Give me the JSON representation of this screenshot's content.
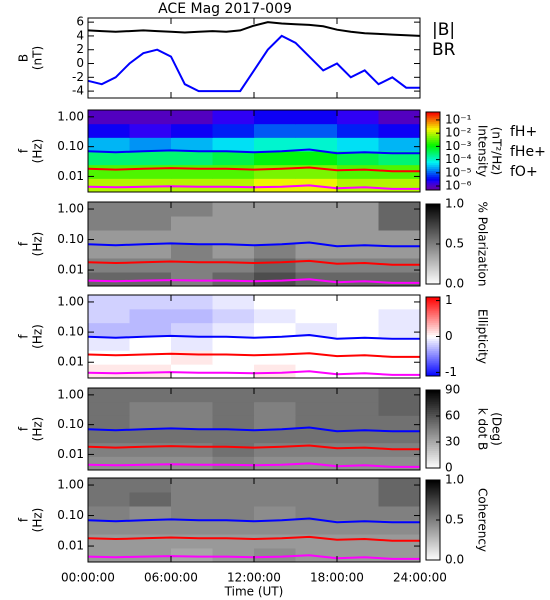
{
  "chart_data": [
    {
      "type": "line",
      "title": "ACE Mag 2017-009",
      "ylabel": [
        "B",
        "(nT)"
      ],
      "x": [
        0,
        1,
        2,
        3,
        4,
        5,
        6,
        7,
        8,
        9,
        10,
        11,
        12,
        13,
        14,
        15,
        16,
        17,
        18,
        19,
        20,
        21,
        22,
        23,
        24
      ],
      "xlim": [
        0,
        24
      ],
      "ylim": [
        -5,
        6.6
      ],
      "yticks": [
        -4,
        -2,
        0,
        2,
        4,
        6
      ],
      "series": [
        {
          "name": "|B|",
          "color": "#000000",
          "values": [
            4.8,
            4.7,
            4.6,
            4.7,
            4.8,
            4.7,
            4.6,
            4.5,
            4.6,
            4.7,
            4.6,
            4.8,
            5.5,
            6.0,
            5.8,
            5.7,
            5.6,
            5.4,
            4.9,
            4.6,
            4.4,
            4.3,
            4.2,
            4.1,
            4.0
          ]
        },
        {
          "name": "BR",
          "color": "#0000ff",
          "values": [
            -2.5,
            -3,
            -2,
            0,
            1.5,
            2,
            1,
            -3,
            -4,
            -4,
            -4,
            -4,
            -1,
            2,
            4,
            3,
            1,
            -1,
            0,
            -2,
            -1,
            -3,
            -2,
            -3.5,
            -3.5
          ]
        }
      ]
    },
    {
      "type": "heatmap",
      "ylabel": [
        "f",
        "(Hz)"
      ],
      "ylog": true,
      "ylim": [
        0.003,
        1.7
      ],
      "yticks": [
        {
          "value": 1,
          "label": "1.00"
        },
        {
          "value": 0.1,
          "label": "0.10"
        },
        {
          "value": 0.01,
          "label": "0.01"
        }
      ],
      "x": [
        0,
        2,
        4,
        6,
        8,
        10,
        12,
        14,
        16,
        18,
        20,
        22,
        24
      ],
      "xlim": [
        0,
        24
      ],
      "colormap": "rainbow",
      "zlog": true,
      "zlim": [
        5e-07,
        0.4
      ],
      "zlabel": [
        "Intensity",
        "(nT²/Hz)"
      ],
      "zticks": [
        {
          "value": 0.1,
          "label": "10⁻¹"
        },
        {
          "value": 0.01,
          "label": "10⁻²"
        },
        {
          "value": 0.001,
          "label": "10⁻³"
        },
        {
          "value": 0.0001,
          "label": "10⁻⁴"
        },
        {
          "value": 1e-05,
          "label": "10⁻⁵"
        },
        {
          "value": 1e-06,
          "label": "10⁻⁶"
        }
      ],
      "z": [
        [
          0.01,
          0.01,
          0.01,
          0.01,
          0.02,
          0.02,
          0.01,
          0.01
        ],
        [
          0.003,
          0.003,
          0.003,
          0.003,
          0.005,
          0.005,
          0.003,
          0.003
        ],
        [
          0.0003,
          0.0003,
          0.0003,
          0.0005,
          0.001,
          0.001,
          0.0005,
          0.0003
        ],
        [
          3e-05,
          2e-05,
          3e-05,
          5e-05,
          0.0001,
          0.0001,
          5e-05,
          3e-05
        ],
        [
          3e-06,
          2e-06,
          3e-06,
          5e-06,
          1e-05,
          1e-05,
          5e-06,
          3e-06
        ],
        [
          1e-06,
          1e-06,
          1e-06,
          2e-06,
          3e-06,
          3e-06,
          2e-06,
          1e-06
        ]
      ],
      "series": [
        {
          "name": "fH+",
          "color": "#0000ff",
          "values": [
            0.07,
            0.065,
            0.07,
            0.075,
            0.07,
            0.07,
            0.065,
            0.07,
            0.08,
            0.06,
            0.065,
            0.06,
            0.06
          ]
        },
        {
          "name": "fHe+",
          "color": "#ff0000",
          "values": [
            0.018,
            0.017,
            0.018,
            0.019,
            0.018,
            0.018,
            0.017,
            0.018,
            0.02,
            0.016,
            0.017,
            0.015,
            0.015
          ]
        },
        {
          "name": "fO+",
          "color": "#ff00ff",
          "values": [
            0.0045,
            0.0043,
            0.0045,
            0.0047,
            0.0045,
            0.0045,
            0.0043,
            0.0045,
            0.005,
            0.004,
            0.0043,
            0.0038,
            0.0038
          ]
        }
      ]
    },
    {
      "type": "heatmap",
      "ylabel": [
        "f",
        "(Hz)"
      ],
      "ylog": true,
      "ylim": [
        0.003,
        1.7
      ],
      "yticks": [
        {
          "value": 1,
          "label": "1.00"
        },
        {
          "value": 0.1,
          "label": "0.10"
        },
        {
          "value": 0.01,
          "label": "0.01"
        }
      ],
      "x": [
        0,
        2,
        4,
        6,
        8,
        10,
        12,
        14,
        16,
        18,
        20,
        22,
        24
      ],
      "xlim": [
        0,
        24
      ],
      "colormap": "gray",
      "zlim": [
        0,
        1
      ],
      "zlabel": [
        "% Polarization"
      ],
      "zticks": [
        {
          "value": 1,
          "label": "1.0"
        },
        0.5,
        {
          "value": 0,
          "label": "0.0"
        }
      ],
      "z": [
        [
          0.6,
          0.6,
          0.5,
          0.6,
          0.7,
          0.6,
          0.6,
          0.6
        ],
        [
          0.5,
          0.5,
          0.5,
          0.5,
          0.6,
          0.5,
          0.5,
          0.5
        ],
        [
          0.4,
          0.4,
          0.5,
          0.4,
          0.5,
          0.4,
          0.4,
          0.4
        ],
        [
          0.4,
          0.4,
          0.4,
          0.4,
          0.4,
          0.4,
          0.4,
          0.4
        ],
        [
          0.5,
          0.5,
          0.4,
          0.4,
          0.4,
          0.4,
          0.4,
          0.6
        ],
        [
          0.5,
          0.5,
          0.5,
          0.4,
          0.4,
          0.4,
          0.4,
          0.6
        ]
      ],
      "series": [
        {
          "color": "#0000ff",
          "values": [
            0.07,
            0.065,
            0.07,
            0.075,
            0.07,
            0.07,
            0.065,
            0.07,
            0.08,
            0.06,
            0.065,
            0.06,
            0.06
          ]
        },
        {
          "color": "#ff0000",
          "values": [
            0.018,
            0.017,
            0.018,
            0.019,
            0.018,
            0.018,
            0.017,
            0.018,
            0.02,
            0.016,
            0.017,
            0.015,
            0.015
          ]
        },
        {
          "color": "#ff00ff",
          "values": [
            0.0045,
            0.0043,
            0.0045,
            0.0047,
            0.0045,
            0.0045,
            0.0043,
            0.0045,
            0.005,
            0.004,
            0.0043,
            0.0038,
            0.0038
          ]
        }
      ]
    },
    {
      "type": "heatmap",
      "ylabel": [
        "f",
        "(Hz)"
      ],
      "ylog": true,
      "ylim": [
        0.003,
        1.7
      ],
      "yticks": [
        {
          "value": 1,
          "label": "1.00"
        },
        {
          "value": 0.1,
          "label": "0.10"
        },
        {
          "value": 0.01,
          "label": "0.01"
        }
      ],
      "x": [
        0,
        2,
        4,
        6,
        8,
        10,
        12,
        14,
        16,
        18,
        20,
        22,
        24
      ],
      "xlim": [
        0,
        24
      ],
      "colormap": "bwr",
      "zlim": [
        -1.1,
        1.1
      ],
      "zlabel": [
        "Ellipticity"
      ],
      "zticks": [
        1,
        0,
        -1
      ],
      "z": [
        [
          0.1,
          0.1,
          0,
          0,
          0.1,
          0,
          0,
          0
        ],
        [
          0,
          0,
          0.1,
          0,
          0,
          0,
          0,
          0
        ],
        [
          -0.1,
          0,
          -0.1,
          0,
          0,
          0,
          0,
          0
        ],
        [
          -0.3,
          -0.3,
          -0.2,
          -0.1,
          0,
          -0.1,
          0,
          -0.1
        ],
        [
          -0.2,
          -0.3,
          -0.3,
          -0.2,
          -0.1,
          0,
          0,
          -0.1
        ],
        [
          -0.2,
          -0.2,
          -0.2,
          -0.1,
          0,
          0,
          0,
          0
        ]
      ],
      "series": [
        {
          "color": "#0000ff",
          "values": [
            0.07,
            0.065,
            0.07,
            0.075,
            0.07,
            0.07,
            0.065,
            0.07,
            0.08,
            0.06,
            0.065,
            0.06,
            0.06
          ]
        },
        {
          "color": "#ff0000",
          "values": [
            0.018,
            0.017,
            0.018,
            0.019,
            0.018,
            0.018,
            0.017,
            0.018,
            0.02,
            0.016,
            0.017,
            0.015,
            0.015
          ]
        },
        {
          "color": "#ff00ff",
          "values": [
            0.0045,
            0.0043,
            0.0045,
            0.0047,
            0.0045,
            0.0045,
            0.0043,
            0.0045,
            0.005,
            0.004,
            0.0043,
            0.0038,
            0.0038
          ]
        }
      ]
    },
    {
      "type": "heatmap",
      "ylabel": [
        "f",
        "(Hz)"
      ],
      "ylog": true,
      "ylim": [
        0.003,
        1.7
      ],
      "yticks": [
        {
          "value": 1,
          "label": "1.00"
        },
        {
          "value": 0.1,
          "label": "0.10"
        },
        {
          "value": 0.01,
          "label": "0.01"
        }
      ],
      "x": [
        0,
        2,
        4,
        6,
        8,
        10,
        12,
        14,
        16,
        18,
        20,
        22,
        24
      ],
      "xlim": [
        0,
        24
      ],
      "colormap": "gray",
      "zlim": [
        0,
        90
      ],
      "zlabel": [
        "k dot B",
        "(Deg)"
      ],
      "zticks": [
        90,
        60,
        30,
        0
      ],
      "z": [
        [
          40,
          40,
          40,
          45,
          40,
          40,
          40,
          40
        ],
        [
          45,
          45,
          45,
          50,
          45,
          45,
          45,
          45
        ],
        [
          50,
          50,
          50,
          50,
          50,
          50,
          50,
          50
        ],
        [
          50,
          45,
          45,
          50,
          45,
          50,
          50,
          50
        ],
        [
          50,
          45,
          45,
          50,
          45,
          50,
          50,
          55
        ],
        [
          50,
          50,
          50,
          50,
          50,
          50,
          50,
          55
        ]
      ],
      "series": [
        {
          "color": "#0000ff",
          "values": [
            0.07,
            0.065,
            0.07,
            0.075,
            0.07,
            0.07,
            0.065,
            0.07,
            0.08,
            0.06,
            0.065,
            0.06,
            0.06
          ]
        },
        {
          "color": "#ff0000",
          "values": [
            0.018,
            0.017,
            0.018,
            0.019,
            0.018,
            0.018,
            0.017,
            0.018,
            0.02,
            0.016,
            0.017,
            0.015,
            0.015
          ]
        },
        {
          "color": "#ff00ff",
          "values": [
            0.0045,
            0.0043,
            0.0045,
            0.0047,
            0.0045,
            0.0045,
            0.0043,
            0.0045,
            0.005,
            0.004,
            0.0043,
            0.0038,
            0.0038
          ]
        }
      ]
    },
    {
      "type": "heatmap",
      "ylabel": [
        "f",
        "(Hz)"
      ],
      "ylog": true,
      "ylim": [
        0.003,
        1.7
      ],
      "yticks": [
        {
          "value": 1,
          "label": "1.00"
        },
        {
          "value": 0.1,
          "label": "0.10"
        },
        {
          "value": 0.01,
          "label": "0.01"
        }
      ],
      "x": [
        0,
        2,
        4,
        6,
        8,
        10,
        12,
        14,
        16,
        18,
        20,
        22,
        24
      ],
      "xlim": [
        0,
        24
      ],
      "colormap": "gray",
      "zlim": [
        0,
        1
      ],
      "zlabel": [
        "Coherency"
      ],
      "zticks": [
        {
          "value": 1,
          "label": "1.0"
        },
        0.5,
        {
          "value": 0,
          "label": "0.0"
        }
      ],
      "z": [
        [
          0.4,
          0.4,
          0.35,
          0.4,
          0.45,
          0.4,
          0.4,
          0.4
        ],
        [
          0.4,
          0.4,
          0.4,
          0.4,
          0.4,
          0.4,
          0.4,
          0.4
        ],
        [
          0.45,
          0.45,
          0.45,
          0.45,
          0.45,
          0.45,
          0.45,
          0.45
        ],
        [
          0.5,
          0.45,
          0.5,
          0.5,
          0.45,
          0.5,
          0.5,
          0.5
        ],
        [
          0.55,
          0.6,
          0.5,
          0.5,
          0.5,
          0.5,
          0.5,
          0.6
        ],
        [
          0.55,
          0.55,
          0.5,
          0.5,
          0.5,
          0.5,
          0.5,
          0.6
        ]
      ],
      "xlabel": "Time (UT)",
      "xticks": [
        {
          "value": 0,
          "label": "00:00:00"
        },
        {
          "value": 6,
          "label": "06:00:00"
        },
        {
          "value": 12,
          "label": "12:00:00"
        },
        {
          "value": 18,
          "label": "18:00:00"
        },
        {
          "value": 24,
          "label": "24:00:00"
        }
      ],
      "series": [
        {
          "color": "#0000ff",
          "values": [
            0.07,
            0.065,
            0.07,
            0.075,
            0.07,
            0.07,
            0.065,
            0.07,
            0.08,
            0.06,
            0.065,
            0.06,
            0.06
          ]
        },
        {
          "color": "#ff0000",
          "values": [
            0.018,
            0.017,
            0.018,
            0.019,
            0.018,
            0.018,
            0.017,
            0.018,
            0.02,
            0.016,
            0.017,
            0.015,
            0.015
          ]
        },
        {
          "color": "#ff00ff",
          "values": [
            0.0045,
            0.0043,
            0.0045,
            0.0047,
            0.0045,
            0.0045,
            0.0043,
            0.0045,
            0.005,
            0.004,
            0.0043,
            0.0038,
            0.0038
          ]
        }
      ]
    }
  ]
}
